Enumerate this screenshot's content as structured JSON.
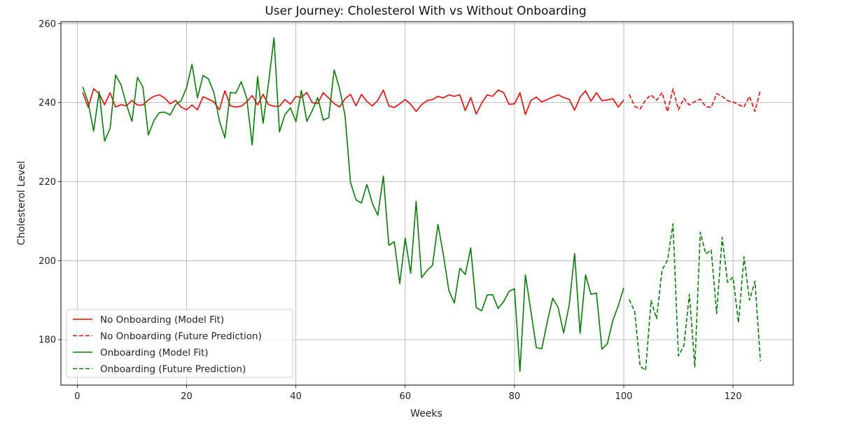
{
  "chart_data": {
    "type": "line",
    "title": "User Journey: Cholesterol With vs Without Onboarding",
    "xlabel": "Weeks",
    "ylabel": "Cholesterol Level",
    "xlim": [
      -3,
      131
    ],
    "ylim": [
      168.5,
      260.5
    ],
    "xticks": [
      0,
      20,
      40,
      60,
      80,
      100,
      120
    ],
    "yticks": [
      180,
      200,
      220,
      240,
      260
    ],
    "grid": true,
    "legend_position": "lower-left",
    "series": [
      {
        "name": "No Onboarding (Model Fit)",
        "color": "#ff0000",
        "dash": "solid",
        "x": [
          1,
          2,
          3,
          4,
          5,
          6,
          7,
          8,
          9,
          10,
          11,
          12,
          13,
          14,
          15,
          16,
          17,
          18,
          19,
          20,
          21,
          22,
          23,
          24,
          25,
          26,
          27,
          28,
          29,
          30,
          31,
          32,
          33,
          34,
          35,
          36,
          37,
          38,
          39,
          40,
          41,
          42,
          43,
          44,
          45,
          46,
          47,
          48,
          49,
          50,
          51,
          52,
          53,
          54,
          55,
          56,
          57,
          58,
          59,
          60,
          61,
          62,
          63,
          64,
          65,
          66,
          67,
          68,
          69,
          70,
          71,
          72,
          73,
          74,
          75,
          76,
          77,
          78,
          79,
          80,
          81,
          82,
          83,
          84,
          85,
          86,
          87,
          88,
          89,
          90,
          91,
          92,
          93,
          94,
          95,
          96,
          97,
          98,
          99,
          100
        ],
        "y": [
          242.6,
          238.8,
          243.5,
          242.3,
          239.5,
          242.5,
          238.9,
          239.5,
          239.2,
          240.6,
          239.4,
          239.4,
          240.7,
          241.6,
          242.0,
          241.2,
          239.7,
          240.6,
          238.9,
          238.2,
          239.4,
          238.2,
          241.5,
          240.9,
          240.2,
          238.2,
          243.0,
          239.2,
          238.9,
          239.1,
          240.2,
          241.8,
          239.4,
          242.1,
          239.5,
          239.1,
          239.1,
          240.8,
          239.6,
          241.6,
          241.3,
          242.6,
          240.0,
          239.8,
          242.5,
          241.2,
          239.8,
          238.9,
          241.0,
          242.1,
          239.2,
          242.1,
          240.3,
          239.2,
          240.6,
          243.2,
          239.2,
          238.8,
          239.7,
          240.8,
          239.6,
          237.8,
          239.5,
          240.5,
          240.8,
          241.6,
          241.2,
          242.0,
          241.6,
          242.0,
          238.0,
          241.3,
          237.1,
          239.9,
          242.0,
          241.6,
          243.2,
          242.6,
          239.6,
          239.7,
          242.5,
          237.0,
          240.5,
          241.4,
          240.2,
          240.8,
          241.4,
          242.0,
          241.3,
          240.9,
          238.1,
          241.4,
          243.0,
          240.4,
          242.5,
          240.5,
          240.7,
          241.0,
          238.9,
          240.7
        ]
      },
      {
        "name": "No Onboarding (Future Prediction)",
        "color": "#ff0000",
        "dash": "dashed",
        "x": [
          101,
          102,
          103,
          104,
          105,
          106,
          107,
          108,
          109,
          110,
          111,
          112,
          113,
          114,
          115,
          116,
          117,
          118,
          119,
          120,
          121,
          122,
          123,
          124,
          125
        ],
        "y": [
          242.1,
          239.1,
          238.4,
          240.7,
          242.0,
          240.6,
          242.6,
          237.7,
          243.5,
          238.2,
          241.1,
          239.4,
          240.3,
          240.9,
          239.0,
          238.8,
          242.3,
          241.6,
          240.5,
          240.2,
          239.5,
          238.9,
          241.6,
          237.8,
          243.3
        ]
      },
      {
        "name": "Onboarding (Model Fit)",
        "color": "#008000",
        "dash": "solid",
        "x": [
          1,
          2,
          3,
          4,
          5,
          6,
          7,
          8,
          9,
          10,
          11,
          12,
          13,
          14,
          15,
          16,
          17,
          18,
          19,
          20,
          21,
          22,
          23,
          24,
          25,
          26,
          27,
          28,
          29,
          30,
          31,
          32,
          33,
          34,
          35,
          36,
          37,
          38,
          39,
          40,
          41,
          42,
          43,
          44,
          45,
          46,
          47,
          48,
          49,
          50,
          51,
          52,
          53,
          54,
          55,
          56,
          57,
          58,
          59,
          60,
          61,
          62,
          63,
          64,
          65,
          66,
          67,
          68,
          69,
          70,
          71,
          72,
          73,
          74,
          75,
          76,
          77,
          78,
          79,
          80,
          81,
          82,
          83,
          84,
          85,
          86,
          87,
          88,
          89,
          90,
          91,
          92,
          93,
          94,
          95,
          96,
          97,
          98,
          99,
          100
        ],
        "y": [
          244.0,
          240.0,
          232.8,
          242.8,
          230.3,
          233.5,
          247.0,
          244.5,
          239.5,
          235.3,
          246.4,
          244.0,
          231.8,
          235.4,
          237.5,
          237.6,
          236.9,
          239.5,
          240.5,
          243.8,
          249.7,
          241.2,
          246.9,
          246.0,
          242.5,
          235.4,
          231.1,
          242.6,
          242.4,
          245.3,
          241.2,
          229.3,
          246.6,
          234.8,
          245.0,
          256.4,
          232.6,
          237.0,
          238.7,
          235.2,
          243.1,
          235.3,
          238.0,
          241.3,
          235.6,
          236.2,
          248.3,
          243.5,
          236.7,
          219.8,
          215.4,
          214.6,
          219.3,
          214.5,
          211.5,
          221.4,
          203.9,
          204.8,
          194.2,
          205.7,
          196.8,
          215.0,
          195.7,
          197.5,
          198.8,
          209.2,
          201.4,
          192.4,
          189.3,
          198.1,
          196.5,
          203.2,
          188.1,
          187.3,
          191.3,
          191.4,
          187.9,
          189.6,
          192.2,
          192.9,
          172.0,
          196.4,
          187.3,
          178.0,
          177.7,
          184.5,
          190.5,
          188.1,
          181.7,
          188.7,
          201.8,
          181.6,
          196.4,
          191.5,
          191.8,
          177.6,
          179.0,
          184.9,
          188.6,
          193.1
        ]
      },
      {
        "name": "Onboarding (Future Prediction)",
        "color": "#008000",
        "dash": "dashed",
        "x": [
          101,
          102,
          103,
          104,
          105,
          106,
          107,
          108,
          109,
          110,
          111,
          112,
          113,
          114,
          115,
          116,
          117,
          118,
          119,
          120,
          121,
          122,
          123,
          124,
          125
        ],
        "y": [
          190.2,
          187.1,
          173.3,
          172.2,
          189.9,
          185.3,
          197.7,
          200.1,
          209.3,
          175.9,
          178.5,
          191.5,
          173.1,
          207.2,
          201.7,
          202.7,
          186.6,
          205.9,
          194.5,
          195.8,
          184.3,
          201.0,
          190.0,
          194.8,
          174.6
        ]
      }
    ]
  }
}
